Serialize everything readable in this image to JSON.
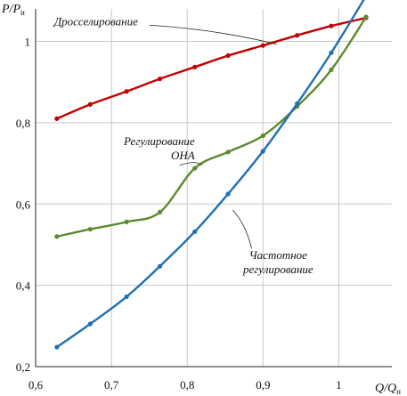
{
  "chart_data": {
    "type": "line",
    "title": "",
    "ylabel": {
      "main": "P/P",
      "sub": "н"
    },
    "xlabel": {
      "main": "Q/Q",
      "sub": "н"
    },
    "xlim": [
      0.6,
      1.07
    ],
    "ylim": [
      0.2,
      1.08
    ],
    "grid": true,
    "x_ticks": [
      {
        "value": 0.6,
        "label": "0,6"
      },
      {
        "value": 0.7,
        "label": "0,7"
      },
      {
        "value": 0.8,
        "label": "0,8"
      },
      {
        "value": 0.9,
        "label": "0,9"
      },
      {
        "value": 1.0,
        "label": "1"
      }
    ],
    "y_ticks": [
      {
        "value": 0.2,
        "label": "0,2"
      },
      {
        "value": 0.4,
        "label": "0,4"
      },
      {
        "value": 0.6,
        "label": "0,6"
      },
      {
        "value": 0.8,
        "label": "0,8"
      },
      {
        "value": 1.0,
        "label": "1"
      }
    ],
    "series": [
      {
        "key": "throttle",
        "color": "#c00000",
        "x": [
          0.628,
          0.672,
          0.72,
          0.764,
          0.81,
          0.854,
          0.9,
          0.945,
          0.99,
          1.036
        ],
        "y": [
          0.81,
          0.845,
          0.877,
          0.908,
          0.937,
          0.965,
          0.99,
          1.015,
          1.038,
          1.058
        ]
      },
      {
        "key": "ona",
        "color": "#5b8a2f",
        "x": [
          0.628,
          0.672,
          0.72,
          0.764,
          0.81,
          0.854,
          0.9,
          0.945,
          0.99,
          1.036
        ],
        "y": [
          0.52,
          0.538,
          0.556,
          0.58,
          0.688,
          0.728,
          0.768,
          0.84,
          0.93,
          1.06
        ]
      },
      {
        "key": "frequency",
        "color": "#1f6fb5",
        "x": [
          0.628,
          0.672,
          0.72,
          0.764,
          0.81,
          0.854,
          0.9,
          0.945,
          0.99,
          1.036
        ],
        "y": [
          0.248,
          0.305,
          0.372,
          0.447,
          0.532,
          0.625,
          0.73,
          0.847,
          0.972,
          1.112
        ]
      }
    ],
    "annotations": [
      {
        "key": "throttle",
        "lines": [
          "Дросселирование"
        ],
        "anchor": "end",
        "tx": 0.735,
        "ty": 1.04,
        "px": 0.75,
        "py": 1.04,
        "lx": 0.918,
        "ly": 0.993
      },
      {
        "key": "ona",
        "lines": [
          "Регулирование",
          "ОНА"
        ],
        "anchor": "end",
        "tx": 0.81,
        "ty": 0.745,
        "px": 0.79,
        "py": 0.695,
        "lx": 0.82,
        "ly": 0.696
      },
      {
        "key": "frequency",
        "lines": [
          "Частотное",
          "регулирование"
        ],
        "anchor": "middle",
        "tx": 0.92,
        "ty": 0.465,
        "px": 0.885,
        "py": 0.49,
        "lx": 0.86,
        "ly": 0.585
      }
    ]
  }
}
